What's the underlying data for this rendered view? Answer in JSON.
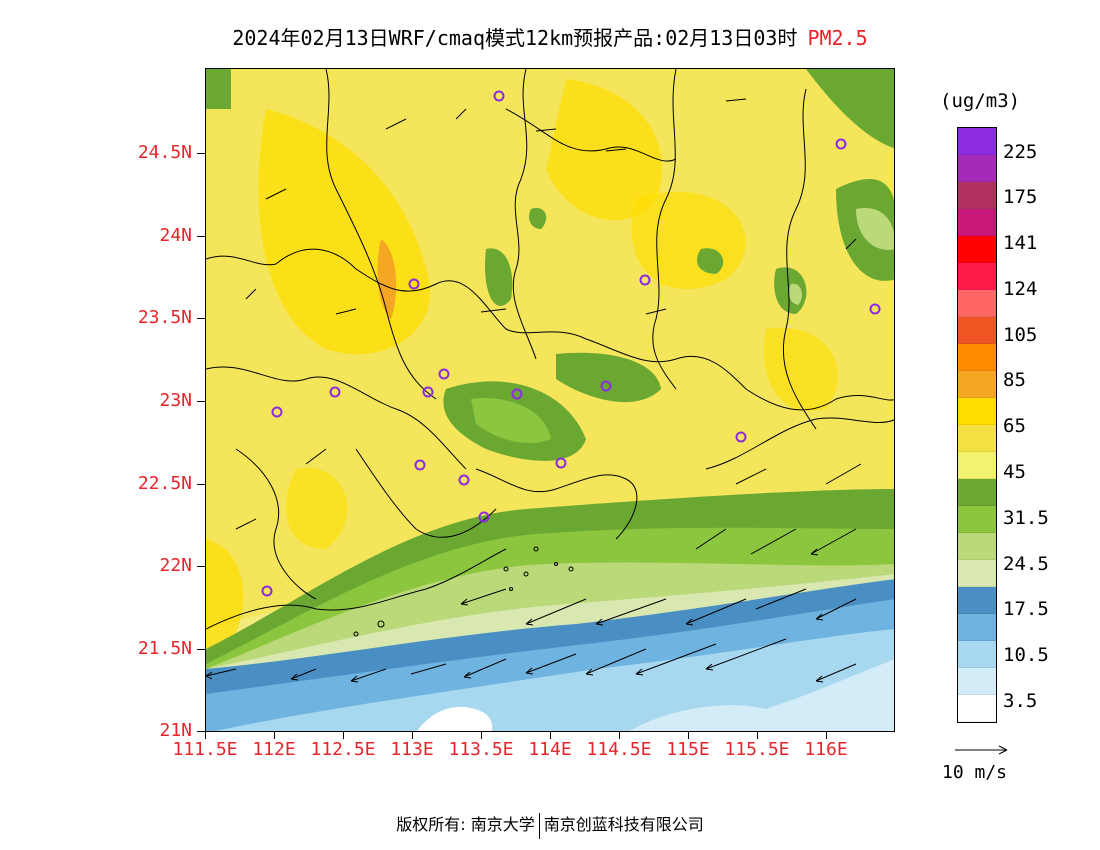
{
  "title": {
    "main": "2024年02月13日WRF/cmaq模式12km预报产品:02月13日03时",
    "pollutant": "PM2.5"
  },
  "axes": {
    "lat_labels": [
      "24.5N",
      "24N",
      "23.5N",
      "23N",
      "22.5N",
      "22N",
      "21.5N",
      "21N"
    ],
    "lon_labels": [
      "111.5E",
      "112E",
      "112.5E",
      "113E",
      "113.5E",
      "114E",
      "114.5E",
      "115E",
      "115.5E",
      "116E"
    ]
  },
  "legend": {
    "unit": "(ug/m3)",
    "labels": [
      "225",
      "175",
      "141",
      "124",
      "105",
      "85",
      "65",
      "45",
      "31.5",
      "24.5",
      "17.5",
      "10.5",
      "3.5"
    ],
    "colors": [
      "#8b2be2",
      "#a52ab8",
      "#b03060",
      "#c8197a",
      "#ff0000",
      "#ff1a4a",
      "#ff6666",
      "#ee5522",
      "#ff8c00",
      "#f5a623",
      "#ffdd00",
      "#f5e042",
      "#f2f270",
      "#6aa832",
      "#8cc63f",
      "#bcd97a",
      "#d8e8b0",
      "#4a8fc4",
      "#6fb3e0",
      "#a8d8f0",
      "#d4ecf8",
      "#ffffff"
    ]
  },
  "wind_reference": "10 m/s",
  "footer": {
    "left": "版权所有: 南京大学",
    "right": "南京创蓝科技有限公司"
  },
  "stations": 18
}
